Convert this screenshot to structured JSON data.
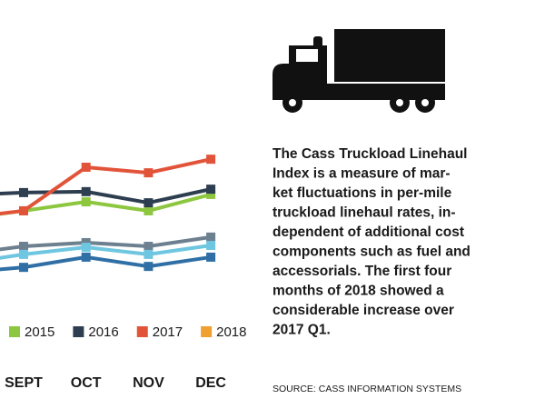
{
  "chart_data": {
    "type": "line",
    "categories": [
      null,
      "SEPT",
      "OCT",
      "NOV",
      "DEC"
    ],
    "series": [
      {
        "name": "2015",
        "color": "#8dc63f",
        "values": [
          123.2,
          125.9,
          128.8,
          125.9,
          131.2
        ]
      },
      {
        "name": "2016",
        "color": "#2d3e50",
        "values": [
          130.9,
          131.8,
          132.1,
          128.5,
          132.9
        ]
      },
      {
        "name": "2017",
        "color": "#e2543a",
        "values": [
          123.5,
          125.9,
          140,
          138.2,
          142.6
        ]
      },
      {
        "name": "2018",
        "color": "#f0a030",
        "values": [
          null,
          null,
          null,
          null,
          null
        ]
      },
      {
        "color": "#6d8090",
        "values": [
          111.8,
          114.4,
          115.6,
          114.4,
          117.4
        ]
      },
      {
        "color": "#6ec6e0",
        "values": [
          108.8,
          111.8,
          114.1,
          111.8,
          114.7
        ]
      },
      {
        "color": "#2f6fa5",
        "values": [
          105.9,
          107.6,
          110.9,
          107.9,
          110.9
        ]
      }
    ],
    "ylim": [
      100,
      150
    ],
    "legend": "bottom"
  },
  "text": {
    "lines": [
      "The Cass Truckload Linehaul",
      "Index is a measure of mar-",
      "ket fluctuations in per-mile",
      "truckload linehaul rates, in-",
      "dependent of additional cost",
      "components such as fuel and",
      "accessorials. The first four",
      "months of 2018 showed a",
      "considerable increase over",
      "2017 Q1."
    ],
    "source": "SOURCE: CASS INFORMATION SYSTEMS"
  }
}
